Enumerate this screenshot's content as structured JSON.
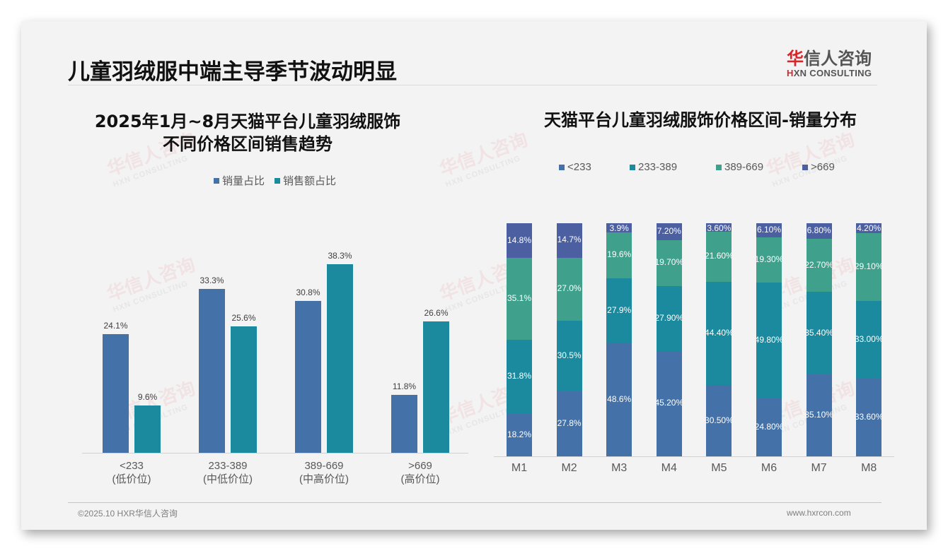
{
  "page": {
    "title": "儿童羽绒服中端主导季节波动明显",
    "logo": {
      "cn_first": "华",
      "cn_rest": "信人咨询",
      "en_first": "H",
      "en_rest": "XN CONSULTING"
    },
    "footer": {
      "left": "©2025.10 HXR华信人咨询",
      "right": "www.hxrcon.com"
    },
    "watermark": {
      "cn": "华信人咨询",
      "en": "HXN CONSULTING"
    }
  },
  "colors": {
    "sales_volume": "#4472a8",
    "sales_amount": "#1b8a9e",
    "lt233": "#4472a8",
    "r233_389": "#1b8a9e",
    "r389_669": "#3fa08c",
    "gt669": "#4c5fa0"
  },
  "chart_data": [
    {
      "type": "bar",
      "title_line1": "2025年1月~8月天猫平台儿童羽绒服饰",
      "title_line2": "不同价格区间销售趋势",
      "categories": [
        "<233",
        "233-389",
        "389-669",
        ">669"
      ],
      "category_sublabels": [
        "(低价位)",
        "(中低价位)",
        "(中高价位)",
        "(高价位)"
      ],
      "series": [
        {
          "name": "销量占比",
          "values": [
            24.1,
            33.3,
            30.8,
            11.8
          ],
          "labels": [
            "24.1%",
            "33.3%",
            "30.8%",
            "11.8%"
          ]
        },
        {
          "name": "销售额占比",
          "values": [
            9.6,
            25.6,
            38.3,
            26.6
          ],
          "labels": [
            "9.6%",
            "25.6%",
            "38.3%",
            "26.6%"
          ]
        }
      ],
      "legend_position": "top",
      "grid": false,
      "ylim": [
        0,
        45
      ]
    },
    {
      "type": "bar",
      "stacked": true,
      "title": "天猫平台儿童羽绒服饰价格区间-销量分布",
      "categories": [
        "M1",
        "M2",
        "M3",
        "M4",
        "M5",
        "M6",
        "M7",
        "M8"
      ],
      "series": [
        {
          "name": "<233",
          "values": [
            18.2,
            27.8,
            48.6,
            45.2,
            30.5,
            24.8,
            35.1,
            33.6
          ],
          "labels": [
            "18.2%",
            "27.8%",
            "48.6%",
            "45.20%",
            "30.50%",
            "24.80%",
            "35.10%",
            "33.60%"
          ]
        },
        {
          "name": "233-389",
          "values": [
            31.8,
            30.5,
            27.9,
            27.9,
            44.4,
            49.8,
            35.4,
            33.0
          ],
          "labels": [
            "31.8%",
            "30.5%",
            "27.9%",
            "27.90%",
            "44.40%",
            "49.80%",
            "35.40%",
            "33.00%"
          ]
        },
        {
          "name": "389-669",
          "values": [
            35.1,
            27.0,
            19.6,
            19.7,
            21.6,
            19.3,
            22.7,
            29.1
          ],
          "labels": [
            "35.1%",
            "27.0%",
            "19.6%",
            "19.70%",
            "21.60%",
            "19.30%",
            "22.70%",
            "29.10%"
          ]
        },
        {
          "name": ">669",
          "values": [
            14.8,
            14.7,
            3.9,
            7.2,
            3.6,
            6.1,
            6.8,
            4.2
          ],
          "labels": [
            "14.8%",
            "14.7%",
            "3.9%",
            "7.20%",
            "3.60%",
            "6.10%",
            "6.80%",
            "4.20%"
          ]
        }
      ],
      "legend_position": "top",
      "grid": false,
      "ylim": [
        0,
        100
      ]
    }
  ]
}
